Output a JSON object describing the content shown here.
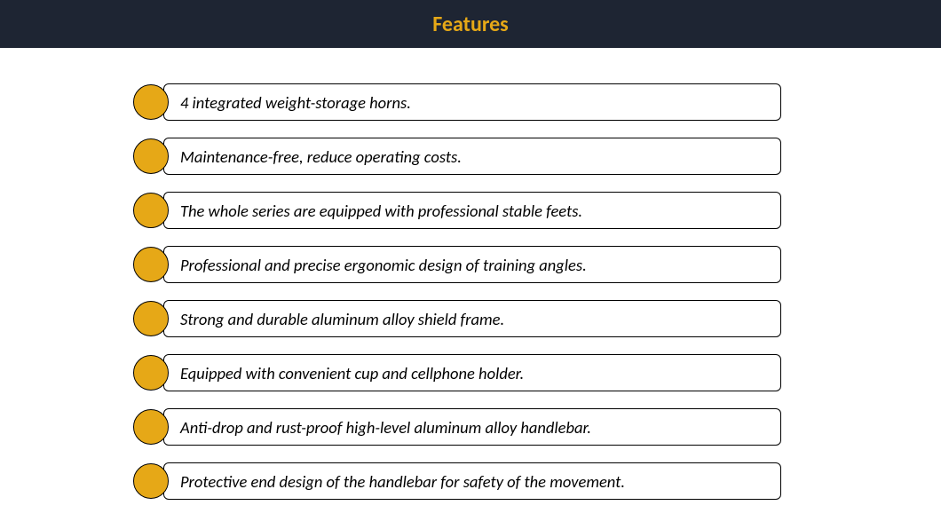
{
  "header": {
    "title": "Features",
    "background_color": "#1e2533",
    "text_color": "#e6a817"
  },
  "bullet": {
    "fill_color": "#e6a817",
    "border_color": "#000000"
  },
  "features": [
    {
      "text": "4 integrated weight-storage horns."
    },
    {
      "text": "Maintenance-free, reduce operating costs."
    },
    {
      "text": "The whole series are equipped with professional stable feets."
    },
    {
      "text": "Professional and precise ergonomic design of training angles."
    },
    {
      "text": "Strong and durable aluminum alloy shield frame."
    },
    {
      "text": "Equipped with convenient cup and cellphone holder."
    },
    {
      "text": "Anti-drop and rust-proof high-level aluminum alloy handlebar."
    },
    {
      "text": " Protective end design of the handlebar for safety of the movement."
    }
  ],
  "text_color": "#000000",
  "box_border_color": "#000000",
  "background_color": "#ffffff"
}
